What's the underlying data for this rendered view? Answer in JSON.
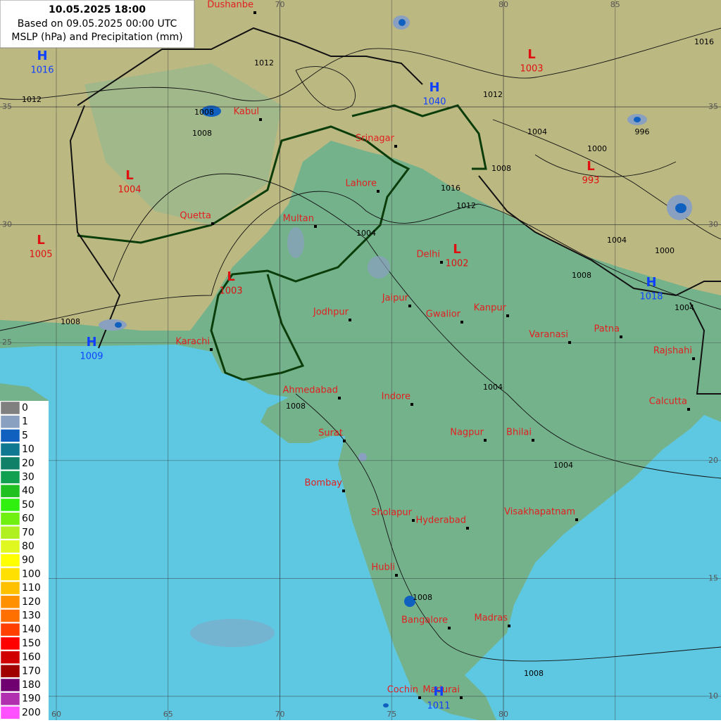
{
  "header": {
    "date": "10.05.2025 18:00",
    "based_on": "Based on 09.05.2025 00:00 UTC",
    "description": "MSLP (hPa) and Precipitation (mm)"
  },
  "cities": [
    "Dushanbe",
    "Kabul",
    "Quetta",
    "Karachi",
    "Multan",
    "Lahore",
    "Srinagar",
    "Delhi",
    "Jaipur",
    "Jodhpur",
    "Gwalior",
    "Kanpur",
    "Varanasi",
    "Patna",
    "Rajshahi",
    "Calcutta",
    "Ahmedabad",
    "Indore",
    "Surat",
    "Nagpur",
    "Bhilai",
    "Bombay",
    "Sholapur",
    "Hyderabad",
    "Visakhapatnam",
    "Hubli",
    "Bangalore",
    "Madras",
    "Cochin",
    "Madurai"
  ],
  "pressure_centers": [
    {
      "symbol": "H",
      "value": 1016
    },
    {
      "symbol": "H",
      "value": 1040
    },
    {
      "symbol": "L",
      "value": 1003
    },
    {
      "symbol": "L",
      "value": 1004
    },
    {
      "symbol": "L",
      "value": 993
    },
    {
      "symbol": "L",
      "value": 1005
    },
    {
      "symbol": "L",
      "value": 1002
    },
    {
      "symbol": "L",
      "value": 1003
    },
    {
      "symbol": "H",
      "value": 1018
    },
    {
      "symbol": "H",
      "value": 1009
    },
    {
      "symbol": "H",
      "value": 1011
    }
  ],
  "isobar_labels": [
    1012,
    1012,
    1008,
    1008,
    1008,
    1004,
    1000,
    996,
    1016,
    1016,
    1012,
    1004,
    1004,
    1000,
    1008,
    1004,
    1008,
    1004,
    1004,
    1008,
    1008,
    1008,
    1012
  ],
  "longitude_labels": {
    "bottom": [
      60,
      65,
      70,
      75,
      80
    ],
    "top": [
      70,
      80,
      85
    ]
  },
  "latitude_labels": {
    "left": [
      35,
      30,
      25
    ],
    "right": [
      35,
      30,
      20,
      15,
      10
    ]
  },
  "legend": {
    "values": [
      0,
      1,
      5,
      10,
      20,
      30,
      40,
      50,
      60,
      70,
      80,
      90,
      100,
      110,
      120,
      130,
      140,
      150,
      160,
      170,
      180,
      190,
      200
    ],
    "colors": [
      "#808080",
      "#8aa0c0",
      "#1060c0",
      "#107890",
      "#108068",
      "#10a050",
      "#20c020",
      "#30f010",
      "#70f010",
      "#b0f020",
      "#e0f820",
      "#ffff00",
      "#ffe000",
      "#ffc000",
      "#ff9000",
      "#ff7000",
      "#ff4000",
      "#ff0000",
      "#d00000",
      "#a00000",
      "#700070",
      "#b030b0",
      "#ff50ff"
    ]
  }
}
